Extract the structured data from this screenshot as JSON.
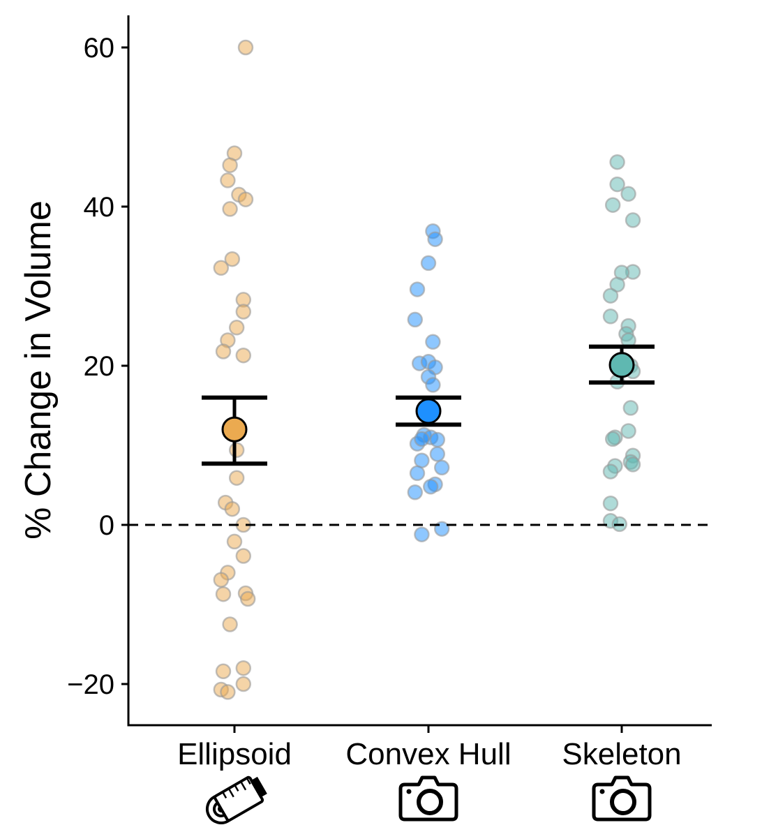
{
  "chart_data": {
    "type": "scatter",
    "title": "",
    "xlabel": "",
    "ylabel": "% Change in Volume",
    "ylim": [
      -25,
      64
    ],
    "yticks": [
      -20,
      0,
      20,
      40,
      60
    ],
    "yticklabels": [
      "−20",
      "0",
      "20",
      "40",
      "60"
    ],
    "reference_line": 0,
    "grid": false,
    "legend": "none",
    "categories": [
      "Ellipsoid",
      "Convex Hull",
      "Skeleton"
    ],
    "category_icons": [
      "measuring-tape-icon",
      "camera-icon",
      "camera-icon"
    ],
    "series": [
      {
        "category": "Ellipsoid",
        "color": "#EBAA50",
        "mean": 12,
        "ci_lower": 7.7,
        "ci_upper": 16,
        "points": [
          {
            "x": 0.05,
            "y": 60
          },
          {
            "x": 0.0,
            "y": 46.7
          },
          {
            "x": -0.02,
            "y": 45.2
          },
          {
            "x": -0.03,
            "y": 43.3
          },
          {
            "x": 0.02,
            "y": 41.5
          },
          {
            "x": 0.05,
            "y": 40.9
          },
          {
            "x": -0.02,
            "y": 39.7
          },
          {
            "x": -0.01,
            "y": 33.4
          },
          {
            "x": -0.06,
            "y": 32.3
          },
          {
            "x": 0.04,
            "y": 28.3
          },
          {
            "x": 0.04,
            "y": 26.8
          },
          {
            "x": 0.01,
            "y": 24.8
          },
          {
            "x": -0.03,
            "y": 23.2
          },
          {
            "x": -0.05,
            "y": 21.8
          },
          {
            "x": 0.04,
            "y": 21.3
          },
          {
            "x": 0.01,
            "y": 9.4
          },
          {
            "x": 0.01,
            "y": 5.9
          },
          {
            "x": -0.04,
            "y": 2.8
          },
          {
            "x": -0.01,
            "y": 2.0
          },
          {
            "x": 0.04,
            "y": 0.0
          },
          {
            "x": 0.0,
            "y": -2.1
          },
          {
            "x": 0.04,
            "y": -3.9
          },
          {
            "x": -0.03,
            "y": -6.0
          },
          {
            "x": -0.06,
            "y": -6.9
          },
          {
            "x": 0.05,
            "y": -8.6
          },
          {
            "x": -0.05,
            "y": -8.7
          },
          {
            "x": 0.06,
            "y": -9.3
          },
          {
            "x": -0.02,
            "y": -12.5
          },
          {
            "x": 0.04,
            "y": -18.0
          },
          {
            "x": -0.05,
            "y": -18.4
          },
          {
            "x": 0.04,
            "y": -20.0
          },
          {
            "x": -0.06,
            "y": -20.7
          },
          {
            "x": -0.03,
            "y": -21.0
          }
        ]
      },
      {
        "category": "Convex Hull",
        "color": "#1E90FF",
        "mean": 14.3,
        "ci_lower": 12.6,
        "ci_upper": 16.0,
        "points": [
          {
            "x": 0.02,
            "y": 36.9
          },
          {
            "x": 0.03,
            "y": 35.9
          },
          {
            "x": 0.0,
            "y": 32.9
          },
          {
            "x": -0.05,
            "y": 29.6
          },
          {
            "x": -0.06,
            "y": 25.8
          },
          {
            "x": 0.02,
            "y": 23.0
          },
          {
            "x": -0.04,
            "y": 20.3
          },
          {
            "x": 0.0,
            "y": 20.5
          },
          {
            "x": 0.03,
            "y": 19.8
          },
          {
            "x": 0.0,
            "y": 18.6
          },
          {
            "x": 0.02,
            "y": 17.6
          },
          {
            "x": -0.02,
            "y": 11.3
          },
          {
            "x": 0.01,
            "y": 11.0
          },
          {
            "x": 0.04,
            "y": 10.7
          },
          {
            "x": -0.05,
            "y": 10.2
          },
          {
            "x": -0.03,
            "y": 10.8
          },
          {
            "x": 0.04,
            "y": 8.9
          },
          {
            "x": -0.03,
            "y": 8.1
          },
          {
            "x": 0.06,
            "y": 7.2
          },
          {
            "x": -0.05,
            "y": 6.5
          },
          {
            "x": 0.03,
            "y": 5.1
          },
          {
            "x": 0.01,
            "y": 4.8
          },
          {
            "x": -0.06,
            "y": 4.1
          },
          {
            "x": 0.06,
            "y": -0.5
          },
          {
            "x": -0.03,
            "y": -1.2
          }
        ]
      },
      {
        "category": "Skeleton",
        "color": "#5FB8B1",
        "mean": 20.1,
        "ci_lower": 17.9,
        "ci_upper": 22.4,
        "points": [
          {
            "x": -0.02,
            "y": 45.6
          },
          {
            "x": -0.02,
            "y": 42.8
          },
          {
            "x": 0.03,
            "y": 41.6
          },
          {
            "x": -0.04,
            "y": 40.2
          },
          {
            "x": 0.05,
            "y": 38.3
          },
          {
            "x": 0.05,
            "y": 31.8
          },
          {
            "x": 0.0,
            "y": 31.7
          },
          {
            "x": -0.02,
            "y": 30.2
          },
          {
            "x": -0.05,
            "y": 28.8
          },
          {
            "x": -0.05,
            "y": 26.2
          },
          {
            "x": 0.03,
            "y": 25.0
          },
          {
            "x": 0.02,
            "y": 24.0
          },
          {
            "x": 0.03,
            "y": 23.2
          },
          {
            "x": 0.0,
            "y": 20.8
          },
          {
            "x": 0.04,
            "y": 20.0
          },
          {
            "x": 0.05,
            "y": 19.3
          },
          {
            "x": -0.02,
            "y": 18.0
          },
          {
            "x": 0.04,
            "y": 14.7
          },
          {
            "x": 0.03,
            "y": 11.8
          },
          {
            "x": -0.03,
            "y": 11.0
          },
          {
            "x": -0.04,
            "y": 10.8
          },
          {
            "x": 0.05,
            "y": 8.7
          },
          {
            "x": 0.04,
            "y": 7.9
          },
          {
            "x": 0.05,
            "y": 7.6
          },
          {
            "x": -0.03,
            "y": 7.4
          },
          {
            "x": -0.05,
            "y": 6.7
          },
          {
            "x": -0.05,
            "y": 2.7
          },
          {
            "x": -0.05,
            "y": 0.5
          },
          {
            "x": -0.01,
            "y": 0.1
          }
        ]
      }
    ]
  }
}
